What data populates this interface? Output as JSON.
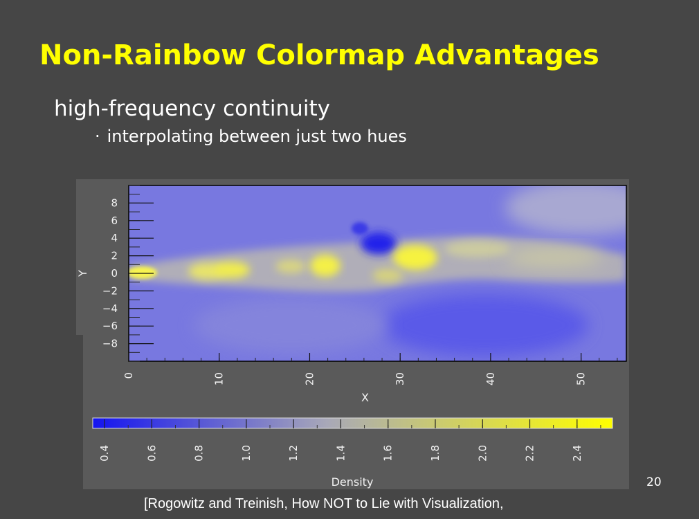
{
  "slide": {
    "title": "Non-Rainbow Colormap Advantages",
    "bullet": "high-frequency continuity",
    "sub_bullet_marker": "·",
    "sub_bullet": "interpolating between just two hues",
    "page_number": "20",
    "citation": "[Rogowitz and Treinish, How NOT to Lie with Visualization,"
  },
  "colors": {
    "background": "#464646",
    "title": "#ffff00",
    "panel": "#5a5a5a",
    "colormap_low": "#1414f0",
    "colormap_mid": "#a8a8b8",
    "colormap_high": "#ffff00"
  },
  "chart_data": {
    "type": "heatmap",
    "xlabel": "X",
    "ylabel": "Y",
    "x_ticks": [
      "0",
      "10",
      "20",
      "30",
      "40",
      "50"
    ],
    "y_ticks": [
      "8",
      "6",
      "4",
      "2",
      "0",
      "−2",
      "−4",
      "−6",
      "−8"
    ],
    "xlim": [
      0,
      55
    ],
    "ylim": [
      -10,
      10
    ],
    "colorbar": {
      "label": "Density",
      "ticks": [
        "0.4",
        "0.6",
        "0.8",
        "1.0",
        "1.2",
        "1.4",
        "1.6",
        "1.8",
        "2.0",
        "2.2",
        "2.4"
      ],
      "range": [
        0.35,
        2.55
      ]
    }
  }
}
